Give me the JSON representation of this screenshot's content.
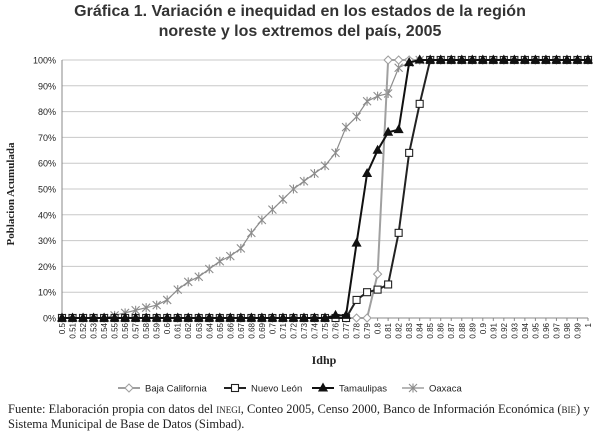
{
  "title_line1": "Gráfica 1. Variación e inequidad en los estados de la región",
  "title_line2": "noreste y los extremos del país, 2005",
  "footer": {
    "part1": "Fuente: Elaboración propia con datos del",
    "inegi": "inegi",
    "part2": ", Conteo 2005, Censo 2000, Banco de Información Económica (",
    "bie": "bie",
    "part3": ") y Sistema Municipal de Base de Datos (Simbad)."
  },
  "chart_data": {
    "type": "line",
    "title": "Gráfica 1. Variación e inequidad en los estados de la región noreste y los extremos del país, 2005",
    "xlabel": "Idhp",
    "ylabel": "Poblacion Acumulada",
    "x": [
      0.5,
      0.51,
      0.52,
      0.53,
      0.54,
      0.55,
      0.56,
      0.57,
      0.58,
      0.59,
      0.6,
      0.61,
      0.62,
      0.63,
      0.64,
      0.65,
      0.66,
      0.67,
      0.68,
      0.69,
      0.7,
      0.71,
      0.72,
      0.73,
      0.74,
      0.75,
      0.76,
      0.77,
      0.78,
      0.79,
      0.8,
      0.81,
      0.82,
      0.83,
      0.84,
      0.85,
      0.86,
      0.87,
      0.88,
      0.89,
      0.9,
      0.91,
      0.92,
      0.93,
      0.94,
      0.95,
      0.96,
      0.97,
      0.98,
      0.99,
      1
    ],
    "x_tick_labels": [
      "0.5",
      "0.51",
      "0.52",
      "0.53",
      "0.54",
      "0.55",
      "0.56",
      "0.57",
      "0.58",
      "0.59",
      "0.6",
      "0.61",
      "0.62",
      "0.63",
      "0.64",
      "0.65",
      "0.66",
      "0.67",
      "0.68",
      "0.69",
      "0.7",
      "0.71",
      "0.72",
      "0.73",
      "0.74",
      "0.75",
      "0.76",
      "0.77",
      "0.78",
      "0.79",
      "0.8",
      "0.81",
      "0.82",
      "0.83",
      "0.84",
      "0.85",
      "0.86",
      "0.87",
      "0.88",
      "0.89",
      "0.9",
      "0.91",
      "0.92",
      "0.93",
      "0.94",
      "0.95",
      "0.96",
      "0.97",
      "0.98",
      "0.99",
      "1"
    ],
    "xlim": [
      0.5,
      1
    ],
    "ylim": [
      0,
      1
    ],
    "y_ticks": [
      0,
      0.1,
      0.2,
      0.3,
      0.4,
      0.5,
      0.6,
      0.7,
      0.8,
      0.9,
      1
    ],
    "y_tick_labels": [
      "0%",
      "10%",
      "20%",
      "30%",
      "40%",
      "50%",
      "60%",
      "70%",
      "80%",
      "90%",
      "100%"
    ],
    "grid": "horizontal",
    "legend": "bottom",
    "series": [
      {
        "name": "Baja California",
        "color": "#a0a0a0",
        "marker": "diamond",
        "values": [
          0,
          0,
          0,
          0,
          0,
          0,
          0,
          0,
          0,
          0,
          0,
          0,
          0,
          0,
          0,
          0,
          0,
          0,
          0,
          0,
          0,
          0,
          0,
          0,
          0,
          0,
          0,
          0,
          0,
          0,
          0.17,
          1,
          1,
          1,
          1,
          1,
          1,
          1,
          1,
          1,
          1,
          1,
          1,
          1,
          1,
          1,
          1,
          1,
          1,
          1,
          1
        ]
      },
      {
        "name": "Nuevo León",
        "color": "#222222",
        "marker": "square",
        "values": [
          0,
          0,
          0,
          0,
          0,
          0,
          0,
          0,
          0,
          0,
          0,
          0,
          0,
          0,
          0,
          0,
          0,
          0,
          0,
          0,
          0,
          0,
          0,
          0,
          0,
          0,
          0,
          0,
          0.07,
          0.1,
          0.11,
          0.13,
          0.33,
          0.64,
          0.83,
          1,
          1,
          1,
          1,
          1,
          1,
          1,
          1,
          1,
          1,
          1,
          1,
          1,
          1,
          1,
          1
        ]
      },
      {
        "name": "Tamaulipas",
        "color": "#111111",
        "marker": "triangle",
        "values": [
          0,
          0,
          0,
          0,
          0,
          0,
          0,
          0,
          0,
          0,
          0,
          0,
          0,
          0,
          0,
          0,
          0,
          0,
          0,
          0,
          0,
          0,
          0,
          0,
          0,
          0,
          0.01,
          0.01,
          0.29,
          0.56,
          0.65,
          0.72,
          0.73,
          0.99,
          1,
          1,
          1,
          1,
          1,
          1,
          1,
          1,
          1,
          1,
          1,
          1,
          1,
          1,
          1,
          1,
          1
        ]
      },
      {
        "name": "Oaxaca",
        "color": "#8c8c8c",
        "marker": "asterisk",
        "values": [
          0,
          0,
          0,
          0,
          0,
          0.01,
          0.02,
          0.03,
          0.04,
          0.05,
          0.07,
          0.11,
          0.14,
          0.16,
          0.19,
          0.22,
          0.24,
          0.27,
          0.33,
          0.38,
          0.42,
          0.46,
          0.5,
          0.53,
          0.56,
          0.59,
          0.64,
          0.74,
          0.78,
          0.84,
          0.86,
          0.87,
          0.97,
          0.99,
          1,
          1,
          1,
          1,
          1,
          1,
          1,
          1,
          1,
          1,
          1,
          1,
          1,
          1,
          1,
          1,
          1
        ]
      }
    ]
  }
}
